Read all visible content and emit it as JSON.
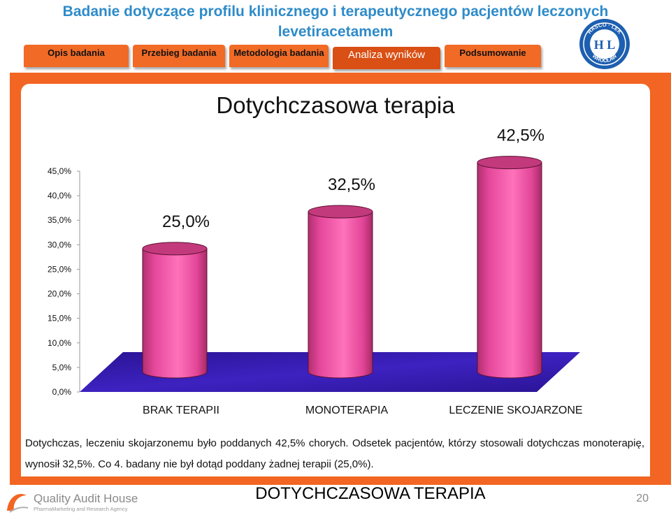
{
  "header": {
    "title": "Badanie dotyczące profilu klinicznego i terapeutycznego pacjentów leczonych levetiracetamem"
  },
  "tabs": [
    {
      "label": "Opis badania",
      "active": false
    },
    {
      "label": "Przebieg badania",
      "active": false
    },
    {
      "label": "Metodologia badania",
      "active": false
    },
    {
      "label": "Analiza wyników",
      "active": true
    },
    {
      "label": "Podsumowanie",
      "active": false
    }
  ],
  "logo": {
    "text_top": "HASCO · LEK",
    "text_bottom": "WROCŁAW",
    "monogram": "H L"
  },
  "chart_data": {
    "type": "bar",
    "style": "3d-cylinder",
    "title": "Dotychczasowa terapia",
    "categories": [
      "BRAK TERAPII",
      "MONOTERAPIA",
      "LECZENIE SKOJARZONE"
    ],
    "values": [
      25.0,
      32.5,
      42.5
    ],
    "data_labels": [
      "25,0%",
      "32,5%",
      "42,5%"
    ],
    "yticks": [
      "0,0%",
      "5,0%",
      "10,0%",
      "15,0%",
      "20,0%",
      "25,0%",
      "30,0%",
      "35,0%",
      "40,0%",
      "45,0%"
    ],
    "ylim": [
      0,
      45
    ],
    "grid": false,
    "colors": {
      "bar": "#ee4fa0",
      "bar_top": "#c23a7c",
      "floor": "#3a1fb0"
    }
  },
  "caption": "Dotychczas, leczeniu skojarzonemu było poddanych 42,5% chorych. Odsetek pacjentów, którzy stosowali dotychczas monoterapię, wynosił 32,5%. Co 4. badany nie był dotąd poddany żadnej terapii (25,0%).",
  "footer": {
    "title": "DOTYCHCZASOWA TERAPIA",
    "page": "20",
    "brand": "Quality Audit House",
    "brand_sub": "PharmaMarketing and Research Agency"
  },
  "colors": {
    "accent": "#f26522",
    "title_blue": "#2e8bc9",
    "tab_active": "#d94f14"
  }
}
